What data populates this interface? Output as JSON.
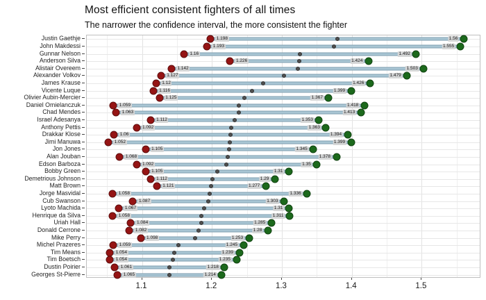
{
  "chart_data": {
    "type": "dumbbell",
    "title": "Most efficient consistent fighters of all times",
    "subtitle": "The narrower the confidence interval, the more consistent the fighter",
    "xlabel": "",
    "ylabel": "",
    "xlim": [
      1.021,
      1.585
    ],
    "x_major_ticks": [
      1.1,
      1.2,
      1.3,
      1.4,
      1.5
    ],
    "x_major_tick_labels": [
      "1.1",
      "1.2",
      "1.3",
      "1.4",
      "1.5"
    ],
    "x_minor_ticks": [
      1.05,
      1.15,
      1.25,
      1.35,
      1.45,
      1.55
    ],
    "grid": true,
    "legend": false,
    "marker_colors": {
      "low_dot": "#951414",
      "high_dot": "#1c691c",
      "mid_dot": "#4f4f4f",
      "bar_fill": "#a9c6d4"
    },
    "note": "gray mid dot sits at the midpoint of each confidence interval",
    "fighters": [
      {
        "name": "Justin Gaethje",
        "low": 1.198,
        "high": 1.56,
        "low_label": "1.198",
        "high_label": "1.56"
      },
      {
        "name": "John Makdessi",
        "low": 1.193,
        "high": 1.555,
        "low_label": "1.193",
        "high_label": "1.555"
      },
      {
        "name": "Gunnar Nelson",
        "low": 1.16,
        "high": 1.492,
        "low_label": "1.16",
        "high_label": "1.492"
      },
      {
        "name": "Anderson Silva",
        "low": 1.226,
        "high": 1.424,
        "low_label": "1.226",
        "high_label": "1.424"
      },
      {
        "name": "Alistair Overeem",
        "low": 1.142,
        "high": 1.503,
        "low_label": "1.142",
        "high_label": "1.503"
      },
      {
        "name": "Alexander Volkov",
        "low": 1.127,
        "high": 1.479,
        "low_label": "1.127",
        "high_label": "1.479"
      },
      {
        "name": "James Krause",
        "low": 1.12,
        "high": 1.426,
        "low_label": "1.12",
        "high_label": "1.426"
      },
      {
        "name": "Vicente Luque",
        "low": 1.116,
        "high": 1.399,
        "low_label": "1.116",
        "high_label": "1.399"
      },
      {
        "name": "Olivier Aubin-Mercier",
        "low": 1.125,
        "high": 1.367,
        "low_label": "1.125",
        "high_label": "1.367"
      },
      {
        "name": "Daniel Omielanczuk",
        "low": 1.059,
        "high": 1.418,
        "low_label": "1.059",
        "high_label": "1.418"
      },
      {
        "name": "Chad Mendes",
        "low": 1.063,
        "high": 1.413,
        "low_label": "1.063",
        "high_label": "1.413"
      },
      {
        "name": "Israel Adesanya",
        "low": 1.112,
        "high": 1.353,
        "low_label": "1.112",
        "high_label": "1.353"
      },
      {
        "name": "Anthony Pettis",
        "low": 1.092,
        "high": 1.363,
        "low_label": "1.092",
        "high_label": "1.363"
      },
      {
        "name": "Drakkar Klose",
        "low": 1.06,
        "high": 1.394,
        "low_label": "1.06",
        "high_label": "1.394"
      },
      {
        "name": "Jimi Manuwa",
        "low": 1.052,
        "high": 1.399,
        "low_label": "1.052",
        "high_label": "1.399"
      },
      {
        "name": "Jon Jones",
        "low": 1.105,
        "high": 1.345,
        "low_label": "1.105",
        "high_label": "1.345"
      },
      {
        "name": "Alan Jouban",
        "low": 1.068,
        "high": 1.378,
        "low_label": "1.068",
        "high_label": "1.378"
      },
      {
        "name": "Edson Barboza",
        "low": 1.092,
        "high": 1.35,
        "low_label": "1.092",
        "high_label": "1.35"
      },
      {
        "name": "Bobby Green",
        "low": 1.105,
        "high": 1.31,
        "low_label": "1.105",
        "high_label": "1.31"
      },
      {
        "name": "Demetrious Johnson",
        "low": 1.112,
        "high": 1.29,
        "low_label": "1.112",
        "high_label": "1.29"
      },
      {
        "name": "Matt Brown",
        "low": 1.121,
        "high": 1.277,
        "low_label": "1.121",
        "high_label": "1.277"
      },
      {
        "name": "Jorge Masvidal",
        "low": 1.058,
        "high": 1.336,
        "low_label": "1.058",
        "high_label": "1.336"
      },
      {
        "name": "Cub Swanson",
        "low": 1.087,
        "high": 1.303,
        "low_label": "1.087",
        "high_label": "1.303"
      },
      {
        "name": "Lyoto Machida",
        "low": 1.067,
        "high": 1.31,
        "low_label": "1.067",
        "high_label": "1.31"
      },
      {
        "name": "Henrique da Silva",
        "low": 1.058,
        "high": 1.311,
        "low_label": "1.058",
        "high_label": "1.311"
      },
      {
        "name": "Uriah Hall",
        "low": 1.084,
        "high": 1.285,
        "low_label": "1.084",
        "high_label": "1.285"
      },
      {
        "name": "Donald Cerrone",
        "low": 1.082,
        "high": 1.28,
        "low_label": "1.082",
        "high_label": "1.28"
      },
      {
        "name": "Mike Perry",
        "low": 1.098,
        "high": 1.253,
        "low_label": "1.098",
        "high_label": "1.253"
      },
      {
        "name": "Michel Prazeres",
        "low": 1.059,
        "high": 1.245,
        "low_label": "1.059",
        "high_label": "1.245"
      },
      {
        "name": "Tim Means",
        "low": 1.054,
        "high": 1.239,
        "low_label": "1.054",
        "high_label": "1.239"
      },
      {
        "name": "Tim Boetsch",
        "low": 1.054,
        "high": 1.235,
        "low_label": "1.054",
        "high_label": "1.235"
      },
      {
        "name": "Dustin Poirier",
        "low": 1.061,
        "high": 1.218,
        "low_label": "1.061",
        "high_label": "1.218"
      },
      {
        "name": "Georges St-Pierre",
        "low": 1.065,
        "high": 1.214,
        "low_label": "1.065",
        "high_label": "1.214"
      }
    ]
  }
}
